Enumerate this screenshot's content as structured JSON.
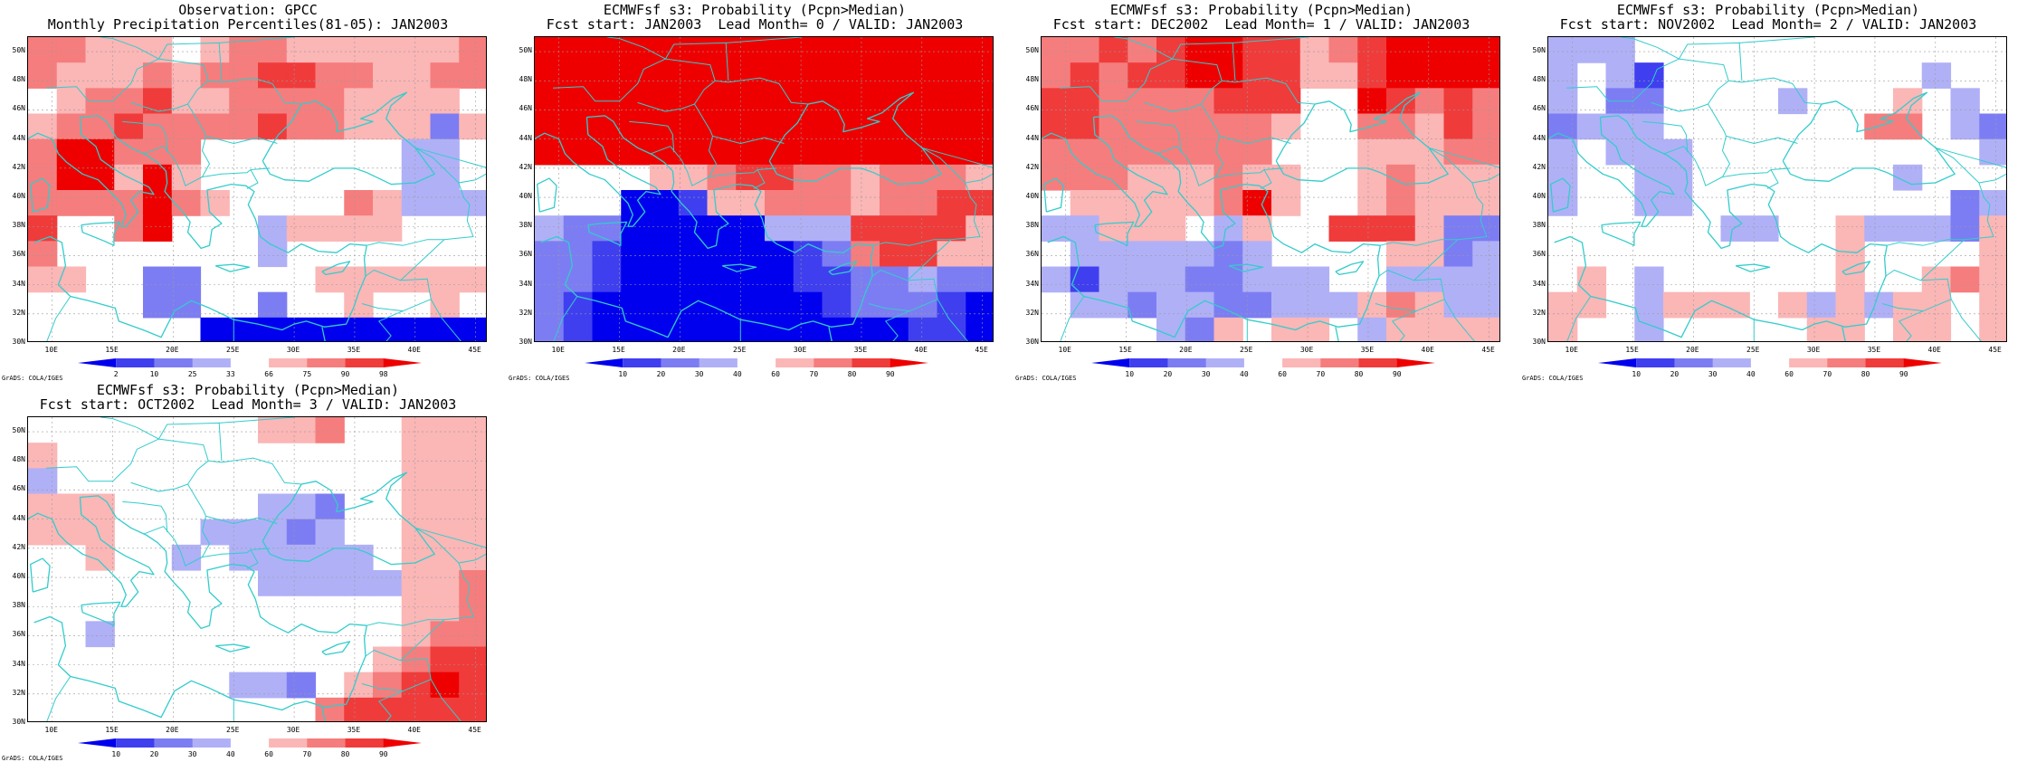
{
  "colors": {
    "land_outline": "#33cccc",
    "grid": "#9a9a9a",
    "scale": {
      "0": "#ffffff",
      "b4": "#0000ee",
      "b3": "#3f3ff0",
      "b2": "#7d7df3",
      "b1": "#b0b0f7",
      "r1": "#fbb6b6",
      "r2": "#f67d7d",
      "r3": "#f03b3b",
      "r4": "#ee0000"
    }
  },
  "axes": {
    "x_ticks": [
      "10E",
      "15E",
      "20E",
      "25E",
      "30E",
      "35E",
      "40E",
      "45E"
    ],
    "y_ticks": [
      "50N",
      "48N",
      "46N",
      "44N",
      "42N",
      "40N",
      "38N",
      "36N",
      "34N",
      "32N",
      "30N"
    ],
    "lon_range": [
      8,
      46
    ],
    "lat_range": [
      30,
      51
    ],
    "grid": true
  },
  "credit": "GrADS: COLA/IGES",
  "panels": [
    {
      "title1": "Observation: GPCC",
      "title2": "Monthly Precipitation Percentiles(81-05): JAN2003",
      "colorbar_labels": [
        "2",
        "10",
        "25",
        "33",
        "66",
        "75",
        "90",
        "98"
      ],
      "chart_data": {
        "type": "heatmap",
        "description_key": "percentile classes per 2.5deg cell; rows north→south, cols west→east",
        "levels": [
          "b4",
          "b3",
          "b2",
          "b1",
          "0",
          "r1",
          "r2",
          "r3",
          "r4"
        ],
        "grid": [
          "r2 r2 r1 r1 r1 0  r1 r2 r2 r1 r1 r1 r1 r1 r1 r2",
          "r2 r1 r1 r1 r2 r1 r2 r2 r3 r3 r2 r2 r1 r1 r2 r2",
          "0  r1 r2 r2 r3 r1 r1 r2 r2 r2 r2 r1 r1 r1 r1 0",
          "r1 r2 r2 r3 r2 r2 r2 r2 r3 r2 r2 r1 r1 r1 b2 r1",
          "r2 r4 r4 r2 r2 r2 0  0  0  0  0  0  0  b1 b1 0",
          "r2 r4 r4 r1 r4 r1 0  0  0  0  0  0  0  b1 b1 0",
          "r2 r2 r2 r2 r4 r2 r1 0  0  0  0  r2 r1 b1 b1 b1",
          "r3 0  0  r2 r4 0  0  0  b1 r1 r1 r1 r1 0  0  0",
          "r2 0  0  0  0  0  0  0  b1 0  0  0  0  0  0  0",
          "r1 r1 0  0  b2 b2 0  0  0  0  r1 r1 r1 r1 r1 r1",
          "0  0  0  0  b2 b2 0  0  b2 0  0  r1 0  0  r1 0",
          "0  0  0  0  0  0  b4 b4 b4 b4 b4 b4 b4 b4 b4 b4"
        ]
      }
    },
    {
      "title1": "ECMWFsf s3: Probability (Pcpn>Median)",
      "title2": "Fcst start: JAN2003  Lead Month= 0 / VALID: JAN2003",
      "colorbar_labels": [
        "10",
        "20",
        "30",
        "40",
        "60",
        "70",
        "80",
        "90"
      ],
      "chart_data": {
        "type": "heatmap",
        "levels": [
          "b4",
          "b3",
          "b2",
          "b1",
          "0",
          "r1",
          "r2",
          "r3",
          "r4"
        ],
        "grid": [
          "r4 r4 r4 r4 r4 r4 r4 r4 r4 r4 r4 r4 r4 r4 r4 r4",
          "r4 r4 r4 r4 r4 r4 r4 r4 r4 r4 r4 r4 r4 r4 r4 r4",
          "r4 r4 r4 r4 r4 r4 r4 r4 r4 r4 r4 r4 r4 r4 r4 r4",
          "r4 r4 r4 r4 r4 r4 r4 r4 r4 r4 r4 r4 r4 r4 r4 r4",
          "r4 r4 r4 r4 r4 r4 r4 r4 r4 r4 r4 r4 r4 r4 r4 r4",
          "0  0  0  0  r1 r1 r2 r3 r3 r2 r2 r1 r2 r2 r2 r1",
          "0  0  0  b4 b4 b3 r1 r1 r2 r2 r2 r1 r2 r2 r3 r3",
          "b1 b2 b2 b4 b4 b4 b4 b4 b1 b1 b1 r3 r3 r3 r3 r1",
          "b2 b2 b3 b4 b4 b4 b4 b4 b4 b3 b2 r2 r3 r3 r1 r1",
          "b2 b2 b3 b4 b4 b4 b4 b4 b4 b3 b3 b2 b2 b1 b2 b2",
          "b2 b3 b4 b4 b4 b4 b4 b4 b4 b4 b3 b2 b2 b2 b3 b4",
          "b2 b3 b4 b4 b4 b4 b4 b4 b4 b4 b4 b4 b4 b3 b3 b4"
        ]
      }
    },
    {
      "title1": "ECMWFsf s3: Probability (Pcpn>Median)",
      "title2": "Fcst start: DEC2002  Lead Month= 1 / VALID: JAN2003",
      "colorbar_labels": [
        "10",
        "20",
        "30",
        "40",
        "60",
        "70",
        "80",
        "90"
      ],
      "chart_data": {
        "type": "heatmap",
        "levels": [
          "b4",
          "b3",
          "b2",
          "b1",
          "0",
          "r1",
          "r2",
          "r3",
          "r4"
        ],
        "grid": [
          "r2 r2 r3 r2 r3 r4 r4 r3 r3 r1 r2 r3 r4 r4 r4 r4",
          "r2 r3 r2 r3 r3 r4 r4 r3 r3 r1 r1 r3 r4 r4 r4 r4",
          "r3 r3 r2 r2 r2 r2 r3 r3 r3 0  0  r4 r3 r2 r3 r2",
          "r3 r3 r2 r2 r2 r2 r2 r2 r1 0  0  r2 r2 r1 r3 r2",
          "r2 r2 r2 r2 r2 r2 r2 r2 0  0  0  r1 r1 r1 r2 r2",
          "r2 r2 r2 r1 r1 r1 r2 r1 r1 0  0  r1 r2 r1 r1 r1",
          "0  r1 r1 r1 r1 r1 r2 r4 r1 0  0  r1 r2 r1 r1 r1",
          "b1 b1 r1 r1 r1 0  b1 r1 0  0  r3 r3 r3 r1 b2 b2",
          "0  b1 b1 b1 b1 b1 b2 b1 0  0  0  0  r1 r1 b2 b1",
          "b1 b3 b1 b1 b1 b2 b2 b1 b1 b1 0  0  b1 b1 b1 b1",
          "0  b1 b1 b2 b1 b1 b2 b2 b1 b1 b1 r1 r2 r1 b1 b1",
          "0  0  0  0  b1 b2 r1 0  r1 r1 0  b1 r1 r1 r1 r1"
        ]
      }
    },
    {
      "title1": "ECMWFsf s3: Probability (Pcpn>Median)",
      "title2": "Fcst start: NOV2002  Lead Month= 2 / VALID: JAN2003",
      "colorbar_labels": [
        "10",
        "20",
        "30",
        "40",
        "60",
        "70",
        "80",
        "90"
      ],
      "chart_data": {
        "type": "heatmap",
        "levels": [
          "b4",
          "b3",
          "b2",
          "b1",
          "0",
          "r1",
          "r2",
          "r3",
          "r4"
        ],
        "grid": [
          "b1 b1 b1 0  0  0  0  0  0  0  0  0  0  0  0  0",
          "b1 0  b1 b3 0  0  0  0  0  0  0  0  0  b1 0  0",
          "b1 0  b2 b2 0  0  0  0  b1 0  0  0  r1 0  b1 0",
          "b2 b1 b1 b1 0  0  0  0  0  0  0  r2 r2 0  b1 b2",
          "b1 0  b1 b1 b1 0  0  0  0  0  0  0  0  0  0  b1",
          "b1 0  0  b1 b1 0  0  0  0  0  0  0  b1 0  0  0",
          "b1 0  0  b1 b1 0  0  0  0  0  0  0  0  0  b2 b1",
          "0  0  0  0  0  0  b1 b1 0  0  r1 b1 b1 b1 b2 r1",
          "0  0  0  0  0  0  0  0  0  0  r1 0  0  0  0  r1",
          "0  r1 0  b1 0  0  0  0  0  0  r1 0  0  r1 r2 r1",
          "r1 r1 0  b1 r1 r1 r1 0  r1 b1 r1 b1 r1 r1 0  r1",
          "r1 0  0  b1 0  0  0  0  0  r1 r1 0  r1 r1 0  r1"
        ]
      }
    },
    {
      "title1": "ECMWFsf s3: Probability (Pcpn>Median)",
      "title2": "Fcst start: OCT2002  Lead Month= 3 / VALID: JAN2003",
      "colorbar_labels": [
        "10",
        "20",
        "30",
        "40",
        "60",
        "70",
        "80",
        "90"
      ],
      "chart_data": {
        "type": "heatmap",
        "levels": [
          "b4",
          "b3",
          "b2",
          "b1",
          "0",
          "r1",
          "r2",
          "r3",
          "r4"
        ],
        "grid": [
          "0  0  0  0  0  0  0  0  r1 r1 r2 0  0  r1 r1 r1",
          "r1 0  0  0  0  0  0  0  0  0  0  0  0  r1 r1 r1",
          "b1 0  0  0  0  0  0  0  0  0  0  0  0  r1 r1 r1",
          "r1 r1 r1 0  0  0  0  0  b1 b1 b2 0  0  r1 r1 r1",
          "r1 r1 r1 0  0  0  b1 b1 b1 b2 b1 0  0  r1 r1 r1",
          "0  0  r1 0  0  b1 0  b1 b1 b1 b1 b1 0  r1 r1 r1",
          "0  0  0  0  0  0  0  0  b1 b1 b1 b1 b1 r1 r1 r2",
          "0  0  0  0  0  0  0  0  0  0  0  0  0  r1 r1 r2",
          "0  0  b1 0  0  0  0  0  0  0  0  0  0  r1 r2 r2",
          "0  0  0  0  0  0  0  0  0  0  0  0  r1 r2 r3 r3",
          "0  0  0  0  0  0  0  b1 b1 b2 0  r1 r2 r3 r4 r3",
          "0  0  0  0  0  0  0  0  0  0  r2 r3 r3 r3 r3 r3"
        ]
      }
    }
  ]
}
